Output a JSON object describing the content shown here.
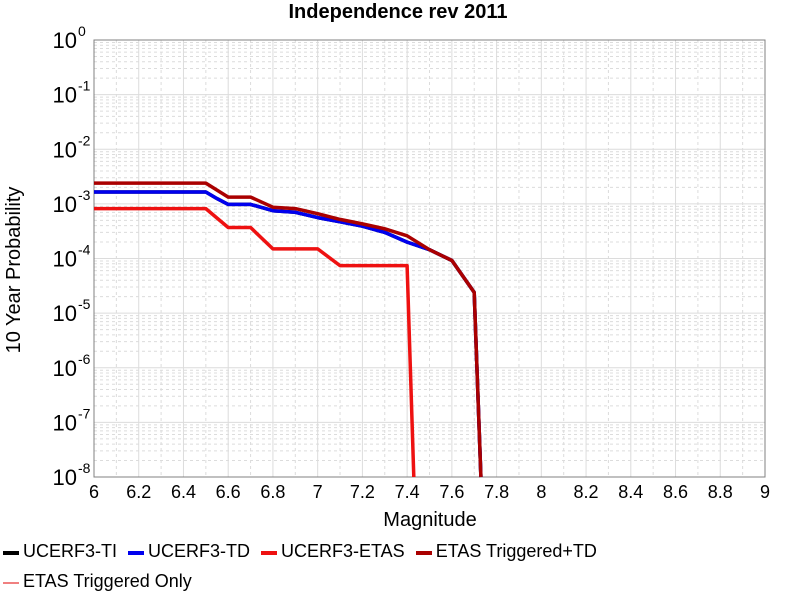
{
  "chart_data": {
    "type": "line",
    "title": "Independence rev 2011",
    "xlabel": "Magnitude",
    "ylabel": "10 Year Probability",
    "xlim": [
      6,
      9
    ],
    "ylim": [
      1e-08,
      1
    ],
    "yscale": "log",
    "grid": true,
    "legend_position": "bottom",
    "x_ticks": [
      "6",
      "6.2",
      "6.4",
      "6.6",
      "6.8",
      "7",
      "7.2",
      "7.4",
      "7.6",
      "7.8",
      "8",
      "8.2",
      "8.4",
      "8.6",
      "8.8",
      "9"
    ],
    "y_ticks": [
      {
        "base": "10",
        "exp": "0",
        "value": 1
      },
      {
        "base": "10",
        "exp": "-1",
        "value": 0.1
      },
      {
        "base": "10",
        "exp": "-2",
        "value": 0.01
      },
      {
        "base": "10",
        "exp": "-3",
        "value": 0.001
      },
      {
        "base": "10",
        "exp": "-4",
        "value": 0.0001
      },
      {
        "base": "10",
        "exp": "-5",
        "value": 1e-05
      },
      {
        "base": "10",
        "exp": "-6",
        "value": 1e-06
      },
      {
        "base": "10",
        "exp": "-7",
        "value": 1e-07
      },
      {
        "base": "10",
        "exp": "-8",
        "value": 1e-08
      }
    ],
    "series": [
      {
        "name": "UCERF3-TI",
        "color": "#000000",
        "points": [
          [
            6.0,
            0.00165
          ],
          [
            6.5,
            0.00165
          ],
          [
            6.55,
            0.00125
          ],
          [
            6.6,
            0.00098
          ],
          [
            6.7,
            0.00098
          ],
          [
            6.8,
            0.00075
          ],
          [
            6.9,
            0.0007
          ],
          [
            7.0,
            0.00056
          ],
          [
            7.1,
            0.00047
          ],
          [
            7.2,
            0.00039
          ],
          [
            7.3,
            0.0003
          ],
          [
            7.4,
            0.0002
          ],
          [
            7.5,
            0.000145
          ],
          [
            7.6,
            9.2e-05
          ],
          [
            7.7,
            2.4e-05
          ],
          [
            7.73,
            1e-08
          ]
        ]
      },
      {
        "name": "UCERF3-TD",
        "color": "#0000ee",
        "points": [
          [
            6.0,
            0.00165
          ],
          [
            6.5,
            0.00165
          ],
          [
            6.55,
            0.00125
          ],
          [
            6.6,
            0.00098
          ],
          [
            6.7,
            0.00098
          ],
          [
            6.8,
            0.00075
          ],
          [
            6.9,
            0.0007
          ],
          [
            7.0,
            0.00056
          ],
          [
            7.1,
            0.00047
          ],
          [
            7.2,
            0.00039
          ],
          [
            7.3,
            0.0003
          ],
          [
            7.4,
            0.0002
          ],
          [
            7.5,
            0.000145
          ],
          [
            7.6,
            9.2e-05
          ],
          [
            7.7,
            2.4e-05
          ],
          [
            7.73,
            1e-08
          ]
        ]
      },
      {
        "name": "UCERF3-ETAS",
        "color": "#ee1111",
        "points": [
          [
            6.0,
            0.00082
          ],
          [
            6.5,
            0.00082
          ],
          [
            6.6,
            0.00037
          ],
          [
            6.7,
            0.00037
          ],
          [
            6.8,
            0.00015
          ],
          [
            7.0,
            0.00015
          ],
          [
            7.1,
            7.4e-05
          ],
          [
            7.4,
            7.4e-05
          ],
          [
            7.43,
            1e-08
          ]
        ]
      },
      {
        "name": "ETAS Triggered+TD",
        "color": "#aa0000",
        "points": [
          [
            6.0,
            0.0024
          ],
          [
            6.5,
            0.0024
          ],
          [
            6.6,
            0.00133
          ],
          [
            6.7,
            0.00133
          ],
          [
            6.8,
            0.00087
          ],
          [
            6.9,
            0.00082
          ],
          [
            7.0,
            0.00066
          ],
          [
            7.1,
            0.00052
          ],
          [
            7.2,
            0.00043
          ],
          [
            7.3,
            0.00035
          ],
          [
            7.4,
            0.00026
          ],
          [
            7.5,
            0.000145
          ],
          [
            7.6,
            9.2e-05
          ],
          [
            7.7,
            2.4e-05
          ],
          [
            7.73,
            1e-08
          ]
        ]
      },
      {
        "name": "ETAS Triggered Only",
        "color": "#f08080",
        "points": []
      }
    ]
  }
}
